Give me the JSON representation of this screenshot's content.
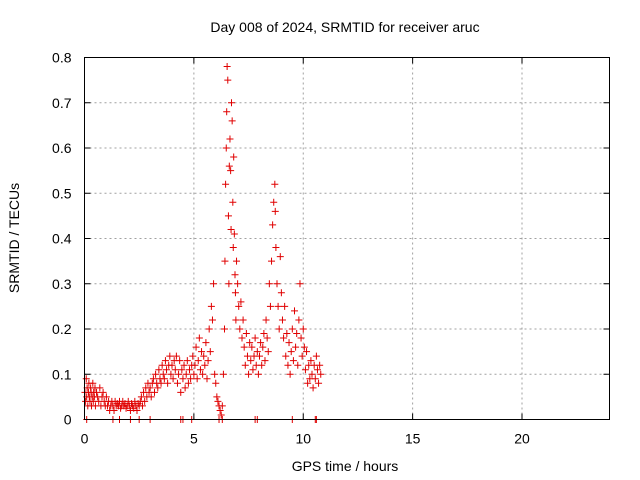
{
  "chart_data": {
    "type": "scatter",
    "title": "Day 008 of 2024, SRMTID for receiver aruc",
    "xlabel": "GPS time / hours",
    "ylabel": "SRMTID / TECUs",
    "xlim": [
      0,
      24
    ],
    "ylim": [
      0,
      0.8
    ],
    "xticks": [
      0,
      5,
      10,
      15,
      20
    ],
    "xtick_labels": [
      "0",
      "5",
      "10",
      "15",
      "20"
    ],
    "yticks": [
      0,
      0.1,
      0.2,
      0.3,
      0.4,
      0.5,
      0.6,
      0.7,
      0.8
    ],
    "ytick_labels": [
      "0",
      "0.1",
      "0.2",
      "0.3",
      "0.4",
      "0.5",
      "0.6",
      "0.7",
      "0.8"
    ],
    "grid": true,
    "marker": "+",
    "color": "#e00000",
    "series": [
      {
        "name": "SRMTID",
        "points": [
          [
            0.02,
            0.06
          ],
          [
            0.05,
            0.04
          ],
          [
            0.08,
            0.09
          ],
          [
            0.1,
            0.05
          ],
          [
            0.12,
            0.07
          ],
          [
            0.15,
            0.03
          ],
          [
            0.18,
            0.06
          ],
          [
            0.2,
            0.08
          ],
          [
            0.22,
            0.05
          ],
          [
            0.25,
            0.04
          ],
          [
            0.28,
            0.07
          ],
          [
            0.3,
            0.06
          ],
          [
            0.32,
            0.03
          ],
          [
            0.35,
            0.05
          ],
          [
            0.38,
            0.08
          ],
          [
            0.4,
            0.04
          ],
          [
            0.42,
            0.06
          ],
          [
            0.45,
            0.05
          ],
          [
            0.48,
            0.07
          ],
          [
            0.5,
            0.03
          ],
          [
            0.55,
            0.06
          ],
          [
            0.6,
            0.05
          ],
          [
            0.65,
            0.04
          ],
          [
            0.7,
            0.07
          ],
          [
            0.75,
            0.03
          ],
          [
            0.8,
            0.05
          ],
          [
            0.85,
            0.06
          ],
          [
            0.9,
            0.04
          ],
          [
            0.95,
            0.03
          ],
          [
            1.0,
            0.05
          ],
          [
            1.05,
            0.03
          ],
          [
            1.1,
            0.04
          ],
          [
            1.15,
            0.02
          ],
          [
            1.2,
            0.03
          ],
          [
            1.25,
            0.04
          ],
          [
            1.3,
            0.03
          ],
          [
            1.35,
            0.02
          ],
          [
            1.4,
            0.04
          ],
          [
            1.45,
            0.03
          ],
          [
            1.5,
            0.035
          ],
          [
            1.55,
            0.03
          ],
          [
            1.6,
            0.04
          ],
          [
            1.65,
            0.025
          ],
          [
            1.7,
            0.03
          ],
          [
            1.75,
            0.04
          ],
          [
            1.8,
            0.03
          ],
          [
            1.85,
            0.035
          ],
          [
            1.9,
            0.025
          ],
          [
            1.95,
            0.03
          ],
          [
            2.0,
            0.04
          ],
          [
            2.05,
            0.03
          ],
          [
            2.1,
            0.02
          ],
          [
            2.15,
            0.035
          ],
          [
            2.2,
            0.03
          ],
          [
            2.25,
            0.025
          ],
          [
            2.3,
            0.04
          ],
          [
            2.35,
            0.03
          ],
          [
            2.4,
            0.02
          ],
          [
            2.45,
            0.035
          ],
          [
            2.5,
            0.03
          ],
          [
            2.55,
            0.04
          ],
          [
            2.6,
            0.05
          ],
          [
            2.65,
            0.03
          ],
          [
            2.7,
            0.06
          ],
          [
            2.75,
            0.04
          ],
          [
            2.8,
            0.07
          ],
          [
            2.85,
            0.05
          ],
          [
            2.9,
            0.08
          ],
          [
            2.95,
            0.06
          ],
          [
            3.0,
            0.07
          ],
          [
            3.05,
            0.05
          ],
          [
            3.1,
            0.08
          ],
          [
            3.15,
            0.09
          ],
          [
            3.2,
            0.06
          ],
          [
            3.25,
            0.1
          ],
          [
            3.3,
            0.08
          ],
          [
            3.35,
            0.07
          ],
          [
            3.4,
            0.11
          ],
          [
            3.45,
            0.09
          ],
          [
            3.5,
            0.08
          ],
          [
            3.55,
            0.12
          ],
          [
            3.6,
            0.1
          ],
          [
            3.65,
            0.09
          ],
          [
            3.7,
            0.13
          ],
          [
            3.75,
            0.11
          ],
          [
            3.8,
            0.08
          ],
          [
            3.85,
            0.12
          ],
          [
            3.9,
            0.14
          ],
          [
            3.95,
            0.1
          ],
          [
            4.0,
            0.12
          ],
          [
            4.05,
            0.09
          ],
          [
            4.1,
            0.13
          ],
          [
            4.15,
            0.11
          ],
          [
            4.2,
            0.14
          ],
          [
            4.25,
            0.08
          ],
          [
            4.3,
            0.1
          ],
          [
            4.35,
            0.13
          ],
          [
            4.4,
            0.06
          ],
          [
            4.45,
            0.11
          ],
          [
            4.5,
            0.09
          ],
          [
            4.55,
            0.12
          ],
          [
            4.6,
            0.07
          ],
          [
            4.65,
            0.1
          ],
          [
            4.7,
            0.13
          ],
          [
            4.75,
            0.08
          ],
          [
            4.8,
            0.11
          ],
          [
            4.85,
            0.09
          ],
          [
            4.9,
            0.12
          ],
          [
            4.95,
            0.14
          ],
          [
            5.0,
            0.1
          ],
          [
            5.05,
            0.12
          ],
          [
            5.1,
            0.16
          ],
          [
            5.15,
            0.09
          ],
          [
            5.2,
            0.13
          ],
          [
            5.25,
            0.18
          ],
          [
            5.3,
            0.11
          ],
          [
            5.35,
            0.15
          ],
          [
            5.4,
            0.1
          ],
          [
            5.45,
            0.14
          ],
          [
            5.5,
            0.12
          ],
          [
            5.55,
            0.17
          ],
          [
            5.6,
            0.09
          ],
          [
            5.65,
            0.13
          ],
          [
            5.7,
            0.2
          ],
          [
            5.75,
            0.15
          ],
          [
            5.8,
            0.25
          ],
          [
            5.85,
            0.22
          ],
          [
            5.9,
            0.3
          ],
          [
            5.95,
            0.1
          ],
          [
            6.0,
            0.08
          ],
          [
            6.05,
            0.05
          ],
          [
            6.1,
            0.04
          ],
          [
            6.15,
            0.03
          ],
          [
            6.2,
            0.02
          ],
          [
            6.25,
            0.01
          ],
          [
            6.3,
            0.03
          ],
          [
            6.35,
            0.1
          ],
          [
            6.4,
            0.2
          ],
          [
            6.42,
            0.35
          ],
          [
            6.45,
            0.52
          ],
          [
            6.48,
            0.6
          ],
          [
            6.5,
            0.68
          ],
          [
            6.52,
            0.78
          ],
          [
            6.55,
            0.75
          ],
          [
            6.58,
            0.45
          ],
          [
            6.6,
            0.3
          ],
          [
            6.62,
            0.56
          ],
          [
            6.65,
            0.62
          ],
          [
            6.68,
            0.55
          ],
          [
            6.7,
            0.42
          ],
          [
            6.72,
            0.7
          ],
          [
            6.75,
            0.66
          ],
          [
            6.78,
            0.48
          ],
          [
            6.8,
            0.38
          ],
          [
            6.82,
            0.58
          ],
          [
            6.85,
            0.41
          ],
          [
            6.88,
            0.32
          ],
          [
            6.9,
            0.28
          ],
          [
            6.92,
            0.22
          ],
          [
            6.95,
            0.35
          ],
          [
            7.0,
            0.3
          ],
          [
            7.05,
            0.25
          ],
          [
            7.1,
            0.2
          ],
          [
            7.15,
            0.26
          ],
          [
            7.2,
            0.18
          ],
          [
            7.25,
            0.22
          ],
          [
            7.3,
            0.16
          ],
          [
            7.35,
            0.12
          ],
          [
            7.4,
            0.19
          ],
          [
            7.45,
            0.14
          ],
          [
            7.5,
            0.1
          ],
          [
            7.55,
            0.17
          ],
          [
            7.6,
            0.13
          ],
          [
            7.65,
            0.16
          ],
          [
            7.7,
            0.11
          ],
          [
            7.75,
            0.14
          ],
          [
            7.8,
            0.18
          ],
          [
            7.85,
            0.12
          ],
          [
            7.9,
            0.15
          ],
          [
            7.95,
            0.1
          ],
          [
            8.0,
            0.14
          ],
          [
            8.05,
            0.17
          ],
          [
            8.1,
            0.12
          ],
          [
            8.15,
            0.16
          ],
          [
            8.2,
            0.19
          ],
          [
            8.25,
            0.13
          ],
          [
            8.3,
            0.22
          ],
          [
            8.35,
            0.18
          ],
          [
            8.4,
            0.15
          ],
          [
            8.45,
            0.3
          ],
          [
            8.5,
            0.25
          ],
          [
            8.55,
            0.35
          ],
          [
            8.6,
            0.43
          ],
          [
            8.65,
            0.48
          ],
          [
            8.7,
            0.52
          ],
          [
            8.72,
            0.46
          ],
          [
            8.75,
            0.38
          ],
          [
            8.8,
            0.3
          ],
          [
            8.85,
            0.25
          ],
          [
            8.9,
            0.2
          ],
          [
            8.95,
            0.36
          ],
          [
            9.0,
            0.28
          ],
          [
            9.05,
            0.22
          ],
          [
            9.1,
            0.18
          ],
          [
            9.15,
            0.25
          ],
          [
            9.2,
            0.14
          ],
          [
            9.25,
            0.19
          ],
          [
            9.3,
            0.12
          ],
          [
            9.35,
            0.17
          ],
          [
            9.4,
            0.1
          ],
          [
            9.45,
            0.15
          ],
          [
            9.5,
            0.2
          ],
          [
            9.55,
            0.13
          ],
          [
            9.6,
            0.24
          ],
          [
            9.65,
            0.16
          ],
          [
            9.7,
            0.19
          ],
          [
            9.75,
            0.12
          ],
          [
            9.8,
            0.22
          ],
          [
            9.85,
            0.3
          ],
          [
            9.9,
            0.18
          ],
          [
            9.95,
            0.14
          ],
          [
            10.0,
            0.2
          ],
          [
            10.05,
            0.16
          ],
          [
            10.1,
            0.11
          ],
          [
            10.15,
            0.15
          ],
          [
            10.2,
            0.08
          ],
          [
            10.25,
            0.12
          ],
          [
            10.3,
            0.09
          ],
          [
            10.35,
            0.13
          ],
          [
            10.4,
            0.1
          ],
          [
            10.45,
            0.07
          ],
          [
            10.5,
            0.12
          ],
          [
            10.55,
            0.09
          ],
          [
            10.6,
            0.14
          ],
          [
            10.65,
            0.11
          ],
          [
            10.7,
            0.08
          ],
          [
            10.75,
            0.12
          ],
          [
            10.8,
            0.1
          ],
          [
            0.1,
            0.0
          ],
          [
            1.3,
            0.0
          ],
          [
            1.6,
            0.0
          ],
          [
            2.1,
            0.0
          ],
          [
            2.5,
            0.0
          ],
          [
            3.0,
            0.0
          ],
          [
            4.4,
            0.0
          ],
          [
            4.5,
            0.0
          ],
          [
            4.9,
            0.0
          ],
          [
            6.15,
            0.0
          ],
          [
            6.3,
            0.0
          ],
          [
            7.8,
            0.0
          ],
          [
            7.9,
            0.0
          ],
          [
            9.5,
            0.0
          ],
          [
            10.55,
            0.0
          ],
          [
            10.6,
            0.0
          ]
        ]
      }
    ]
  }
}
